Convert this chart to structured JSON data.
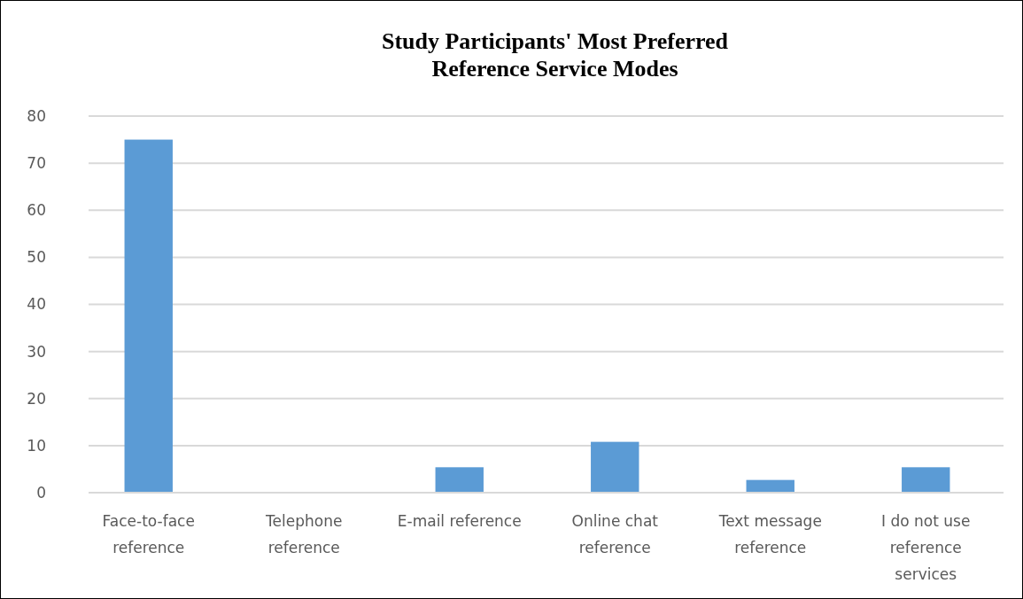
{
  "chart_data": {
    "type": "bar",
    "title": "Study Participants' Most Preferred\nReference Service Modes",
    "categories": [
      "Face-to-face reference",
      "Telephone reference",
      "E-mail reference",
      "Online chat reference",
      "Text message reference",
      "I do not use reference services"
    ],
    "values": [
      75,
      0,
      5.4,
      10.8,
      2.7,
      5.4
    ],
    "color": "#5b9bd5",
    "ylim": [
      0,
      80
    ],
    "yticks": [
      0,
      10,
      20,
      30,
      40,
      50,
      60,
      70,
      80
    ],
    "grid": "y"
  }
}
